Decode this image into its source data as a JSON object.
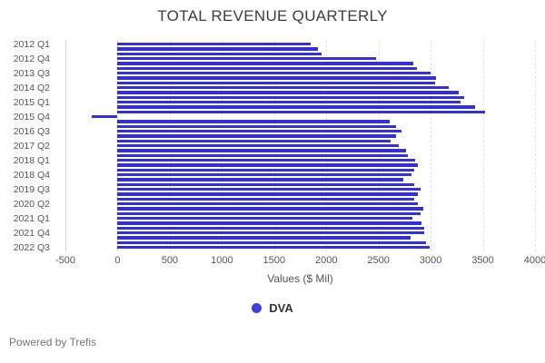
{
  "footer": {
    "text": "Powered by Trefis"
  },
  "legend": {
    "label": "DVA",
    "dot_color": "#423dd6"
  },
  "chart_data": {
    "type": "bar",
    "orientation": "horizontal",
    "title": "TOTAL REVENUE QUARTERLY",
    "xlabel": "Values ($ Mil)",
    "ylabel": "",
    "xlim": [
      -500,
      4000
    ],
    "x_ticks": [
      -500,
      0,
      500,
      1000,
      1500,
      2000,
      2500,
      3000,
      3500,
      4000
    ],
    "grid": "vertical-dashed",
    "legend_position": "bottom",
    "bar_color": "#3533c4",
    "visible_y_labels": [
      "2012 Q1",
      "2012 Q4",
      "2013 Q3",
      "2014 Q2",
      "2015 Q1",
      "2015 Q4",
      "2016 Q3",
      "2017 Q2",
      "2018 Q1",
      "2018 Q4",
      "2019 Q3",
      "2020 Q2",
      "2021 Q1",
      "2021 Q4",
      "2022 Q3"
    ],
    "y_label_step": 3,
    "categories": [
      "2012 Q1",
      "2012 Q2",
      "2012 Q3",
      "2012 Q4",
      "2013 Q1",
      "2013 Q2",
      "2013 Q3",
      "2013 Q4",
      "2014 Q1",
      "2014 Q2",
      "2014 Q3",
      "2014 Q4",
      "2015 Q1",
      "2015 Q2",
      "2015 Q3",
      "2015 Q4",
      "2016 Q1",
      "2016 Q2",
      "2016 Q3",
      "2016 Q4",
      "2017 Q1",
      "2017 Q2",
      "2017 Q3",
      "2017 Q4",
      "2018 Q1",
      "2018 Q2",
      "2018 Q3",
      "2018 Q4",
      "2019 Q1",
      "2019 Q2",
      "2019 Q3",
      "2019 Q4",
      "2020 Q1",
      "2020 Q2",
      "2020 Q3",
      "2020 Q4",
      "2021 Q1",
      "2021 Q2",
      "2021 Q3",
      "2021 Q4",
      "2022 Q1",
      "2022 Q2",
      "2022 Q3"
    ],
    "series": [
      {
        "name": "DVA",
        "values": [
          1850,
          1920,
          1955,
          2480,
          2830,
          2870,
          3000,
          3050,
          3045,
          3170,
          3270,
          3320,
          3290,
          3425,
          3520,
          -250,
          2610,
          2670,
          2720,
          2670,
          2620,
          2695,
          2765,
          2785,
          2850,
          2880,
          2840,
          2820,
          2740,
          2840,
          2900,
          2875,
          2840,
          2875,
          2930,
          2905,
          2825,
          2915,
          2935,
          2935,
          2810,
          2955,
          2990
        ]
      }
    ]
  }
}
